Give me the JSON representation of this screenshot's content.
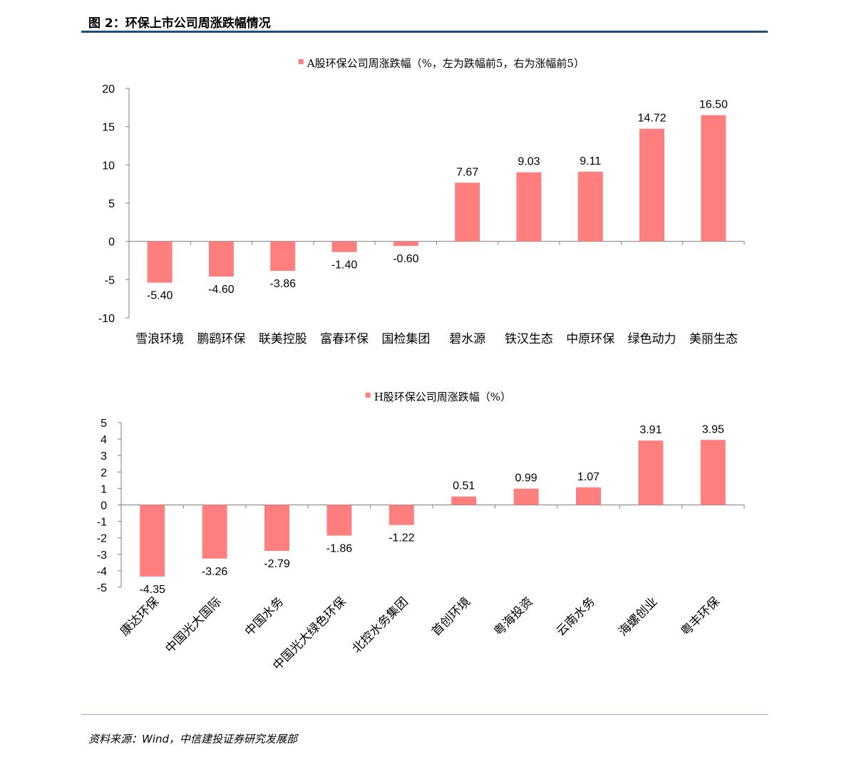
{
  "figure": {
    "title": "图 2：环保上市公司周涨跌幅情况",
    "source": "资料来源：Wind，中信建投证券研究发展部"
  },
  "colors": {
    "bar": "#ff7f7f",
    "rule": "#1f4e79",
    "axis": "#7f7f7f"
  },
  "chart_data": [
    {
      "type": "bar",
      "legend": "A股环保公司周涨跌幅（%，左为跌幅前5，右为涨幅前5）",
      "categories": [
        "雪浪环境",
        "鹏鹞环保",
        "联美控股",
        "富春环保",
        "国检集团",
        "碧水源",
        "铁汉生态",
        "中原环保",
        "绿色动力",
        "美丽生态"
      ],
      "values": [
        -5.4,
        -4.6,
        -3.86,
        -1.4,
        -0.6,
        7.67,
        9.03,
        9.11,
        14.72,
        16.5
      ],
      "value_labels": [
        "-5.40",
        "-4.60",
        "-3.86",
        "-1.40",
        "-0.60",
        "7.67",
        "9.03",
        "9.11",
        "14.72",
        "16.50"
      ],
      "ylim": [
        -10,
        20
      ],
      "yticks": [
        "-10",
        "-5",
        "0",
        "5",
        "10",
        "15",
        "20"
      ],
      "ytick_values": [
        -10,
        -5,
        0,
        5,
        10,
        15,
        20
      ],
      "grid": false,
      "legend_position": "top-center"
    },
    {
      "type": "bar",
      "legend": "H股环保公司周涨跌幅（%）",
      "categories": [
        "康达环保",
        "中国光大国际",
        "中国水务",
        "中国光大绿色环保",
        "北控水务集团",
        "首创环境",
        "粤海投资",
        "云南水务",
        "海螺创业",
        "粤丰环保"
      ],
      "values": [
        -4.35,
        -3.26,
        -2.79,
        -1.86,
        -1.22,
        0.51,
        0.99,
        1.07,
        3.91,
        3.95
      ],
      "value_labels": [
        "-4.35",
        "-3.26",
        "-2.79",
        "-1.86",
        "-1.22",
        "0.51",
        "0.99",
        "1.07",
        "3.91",
        "3.95"
      ],
      "ylim": [
        -5,
        5
      ],
      "yticks": [
        "-5",
        "-4",
        "-3",
        "-2",
        "-1",
        "0",
        "1",
        "2",
        "3",
        "4",
        "5"
      ],
      "ytick_values": [
        -5,
        -4,
        -3,
        -2,
        -1,
        0,
        1,
        2,
        3,
        4,
        5
      ],
      "grid": false,
      "legend_position": "top-center"
    }
  ]
}
